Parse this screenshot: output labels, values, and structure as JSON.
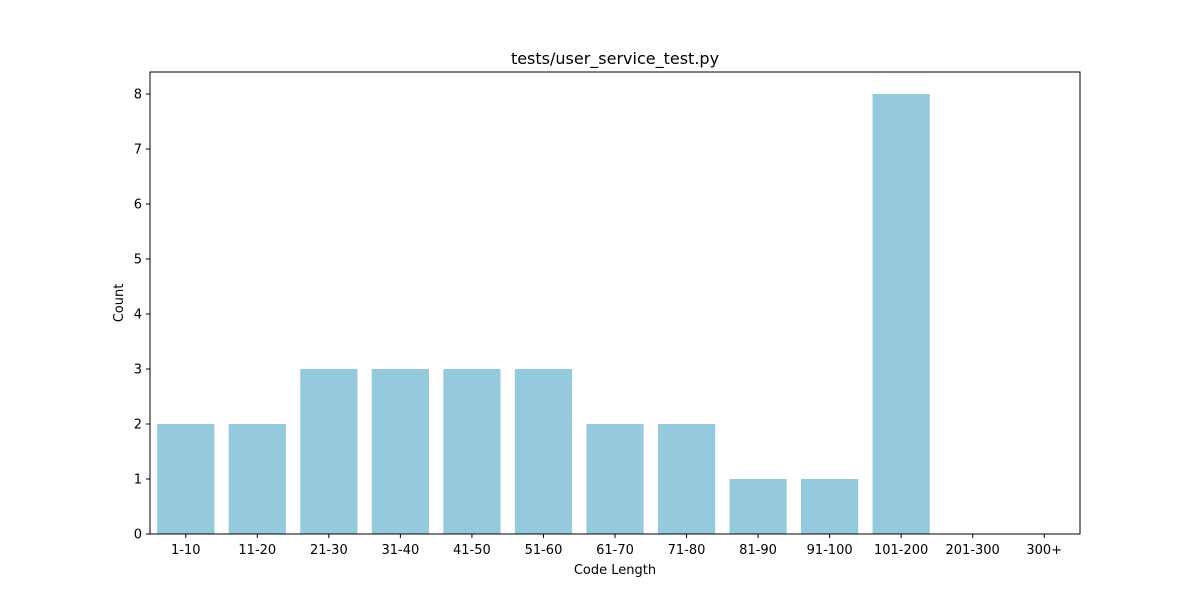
{
  "chart_data": {
    "type": "bar",
    "title": "tests/user_service_test.py",
    "xlabel": "Code Length",
    "ylabel": "Count",
    "categories": [
      "1-10",
      "11-20",
      "21-30",
      "31-40",
      "41-50",
      "51-60",
      "61-70",
      "71-80",
      "81-90",
      "91-100",
      "101-200",
      "201-300",
      "300+"
    ],
    "values": [
      2,
      2,
      3,
      3,
      3,
      3,
      2,
      2,
      1,
      1,
      8,
      0,
      0
    ],
    "yticks": [
      0,
      1,
      2,
      3,
      4,
      5,
      6,
      7,
      8
    ],
    "ylim": [
      0,
      8.4
    ],
    "bar_color": "#95c9de",
    "grid": false,
    "legend": "none"
  }
}
